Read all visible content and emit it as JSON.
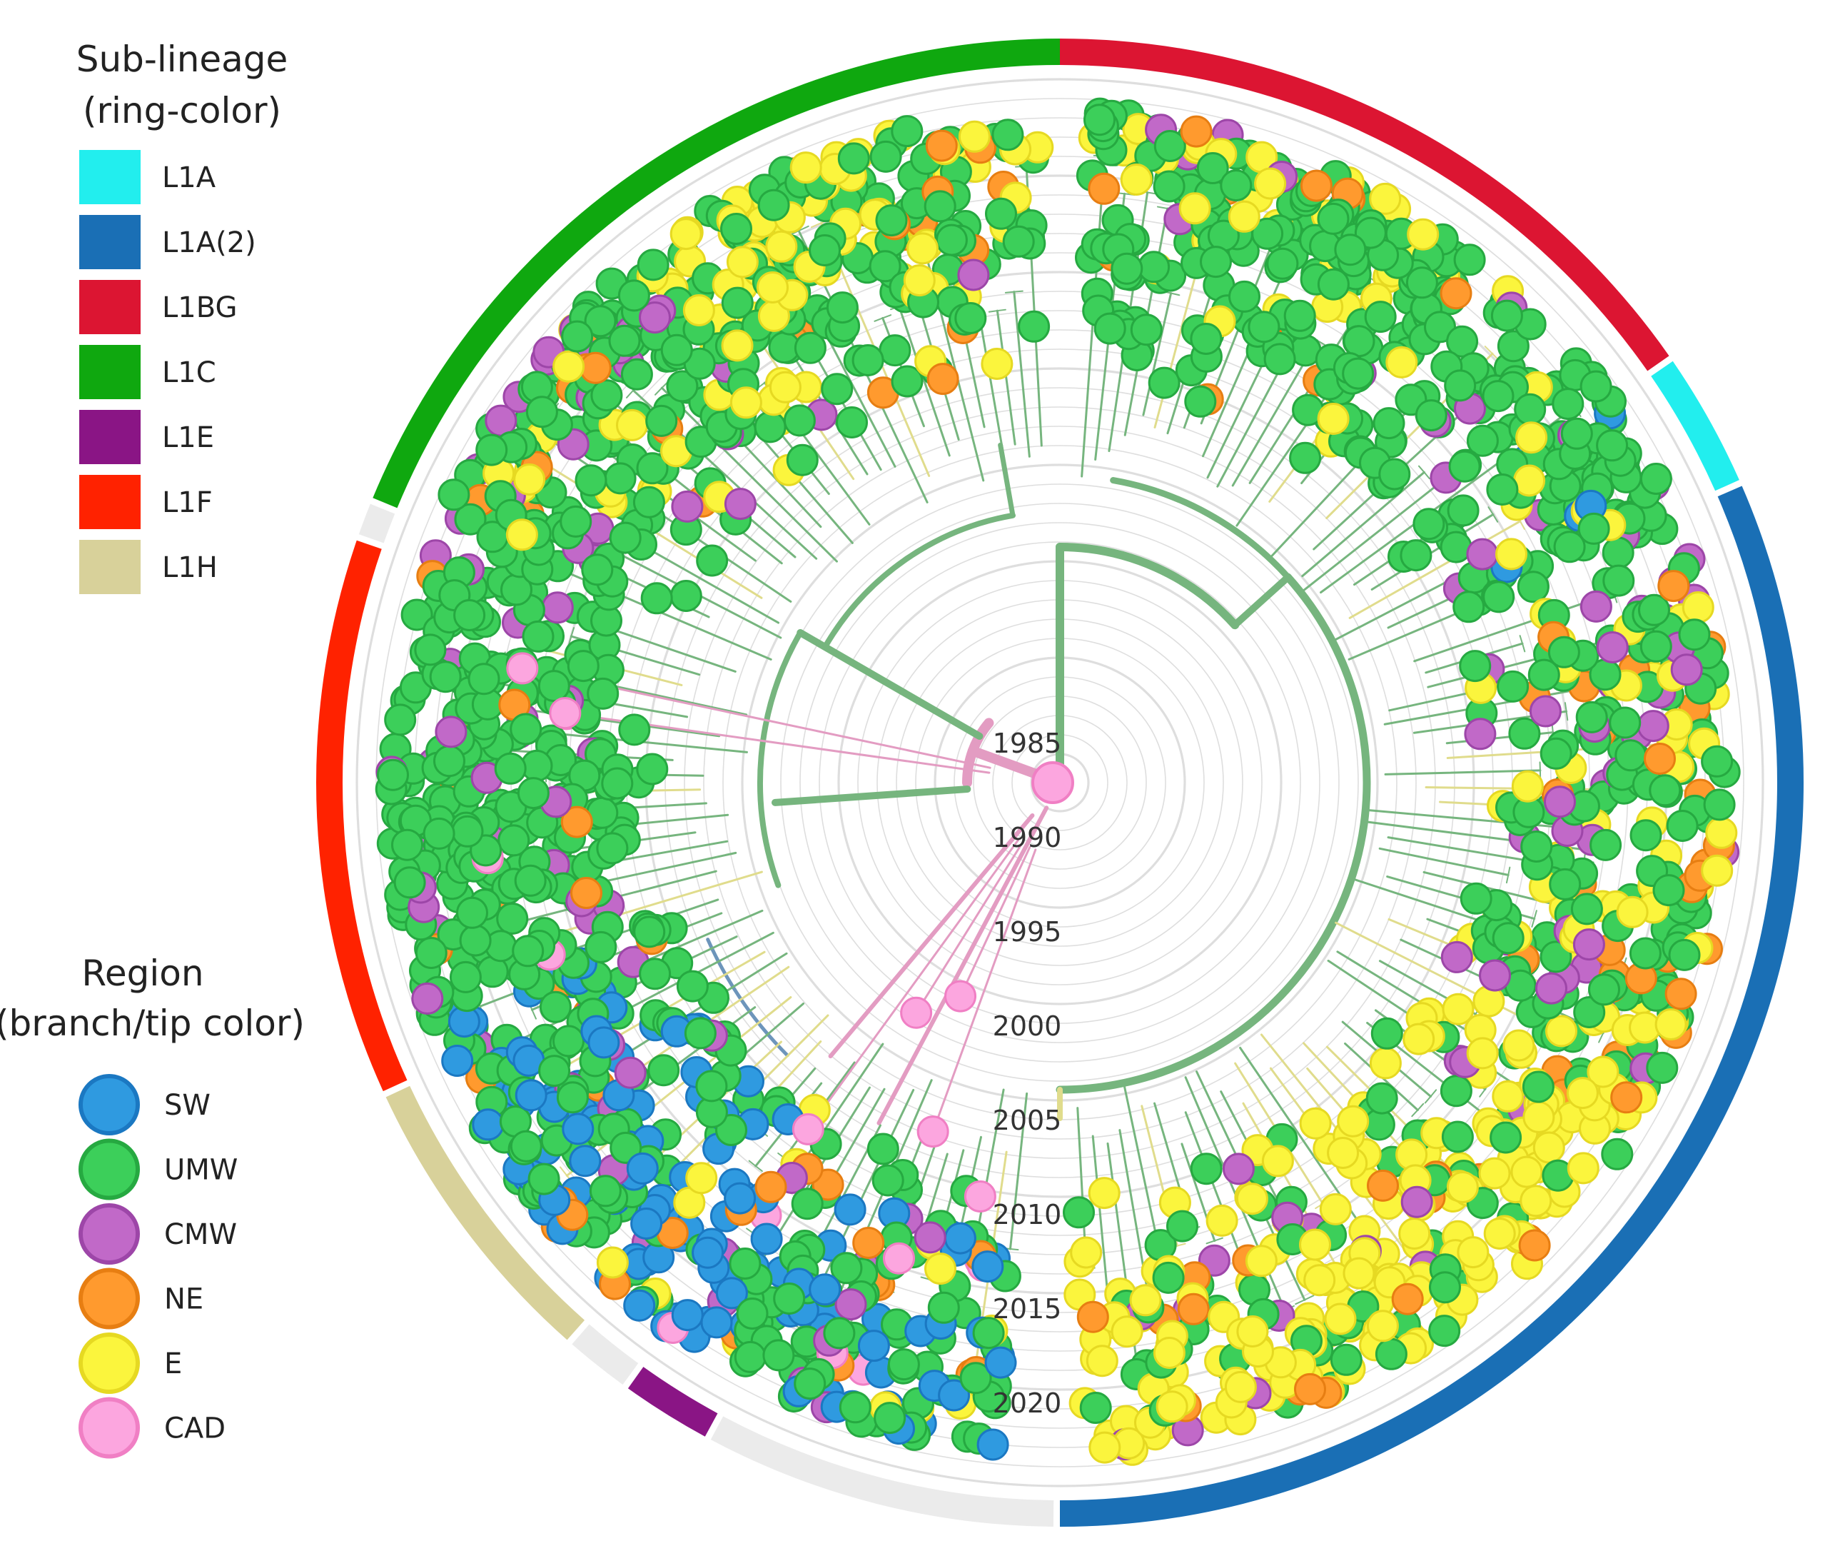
{
  "sublineage_legend": {
    "title": "Sub-lineage",
    "subtitle": "(ring-color)",
    "items": [
      {
        "label": "L1A",
        "color": "#22eeee"
      },
      {
        "label": "L1A(2)",
        "color": "#1a6fb5"
      },
      {
        "label": "L1BG",
        "color": "#dc1532"
      },
      {
        "label": "L1C",
        "color": "#0fa80f"
      },
      {
        "label": "L1E",
        "color": "#8a1585"
      },
      {
        "label": "L1F",
        "color": "#ff2200"
      },
      {
        "label": "L1H",
        "color": "#d8d19a"
      }
    ]
  },
  "region_legend": {
    "title": "Region",
    "subtitle": "(branch/tip color)",
    "items": [
      {
        "label": "SW",
        "color": "#2f9ae0"
      },
      {
        "label": "UMW",
        "color": "#3ccf5a"
      },
      {
        "label": "CMW",
        "color": "#c169c8"
      },
      {
        "label": "NE",
        "color": "#ff9a2e"
      },
      {
        "label": "E",
        "color": "#fbf53d"
      },
      {
        "label": "CAD",
        "color": "#fca6df"
      }
    ]
  },
  "time_axis": {
    "years": [
      "1985",
      "1990",
      "1995",
      "2000",
      "2005",
      "2010",
      "2015",
      "2020"
    ]
  },
  "lineage_ring": [
    {
      "lineage": "L1BG",
      "start_deg": 0,
      "end_deg": 55
    },
    {
      "lineage": "L1A",
      "start_deg": 55.5,
      "end_deg": 66
    },
    {
      "lineage": "L1A(2)",
      "start_deg": 66.5,
      "end_deg": 180
    },
    {
      "lineage": "none",
      "start_deg": 180.5,
      "end_deg": 208
    },
    {
      "lineage": "L1E",
      "start_deg": 208.5,
      "end_deg": 215.5
    },
    {
      "lineage": "none",
      "start_deg": 216,
      "end_deg": 221
    },
    {
      "lineage": "L1H",
      "start_deg": 221.5,
      "end_deg": 245
    },
    {
      "lineage": "L1F",
      "start_deg": 245.5,
      "end_deg": 289
    },
    {
      "lineage": "none",
      "start_deg": 289.5,
      "end_deg": 292
    },
    {
      "lineage": "L1C",
      "start_deg": 292.5,
      "end_deg": 360
    }
  ],
  "tree_sectors": [
    {
      "start_deg": 3,
      "end_deg": 40,
      "mix": {
        "UMW": 0.72,
        "E": 0.18,
        "NE": 0.05,
        "CMW": 0.05
      },
      "count": 240
    },
    {
      "start_deg": 42,
      "end_deg": 68,
      "mix": {
        "UMW": 0.82,
        "CMW": 0.06,
        "E": 0.08,
        "SW": 0.04
      },
      "count": 150
    },
    {
      "start_deg": 70,
      "end_deg": 118,
      "mix": {
        "UMW": 0.55,
        "E": 0.22,
        "CMW": 0.12,
        "NE": 0.11
      },
      "count": 260
    },
    {
      "start_deg": 118,
      "end_deg": 178,
      "mix": {
        "E": 0.68,
        "UMW": 0.22,
        "NE": 0.06,
        "CMW": 0.04
      },
      "count": 300
    },
    {
      "start_deg": 185,
      "end_deg": 226,
      "mix": {
        "UMW": 0.45,
        "SW": 0.35,
        "CMW": 0.06,
        "NE": 0.06,
        "CAD": 0.04,
        "E": 0.04
      },
      "count": 220
    },
    {
      "start_deg": 226,
      "end_deg": 250,
      "mix": {
        "SW": 0.45,
        "UMW": 0.42,
        "CMW": 0.07,
        "NE": 0.06
      },
      "count": 170
    },
    {
      "start_deg": 250,
      "end_deg": 290,
      "mix": {
        "UMW": 0.86,
        "CMW": 0.08,
        "NE": 0.04,
        "CAD": 0.02
      },
      "count": 260
    },
    {
      "start_deg": 292,
      "end_deg": 318,
      "mix": {
        "UMW": 0.72,
        "CMW": 0.12,
        "E": 0.1,
        "NE": 0.06
      },
      "count": 170
    },
    {
      "start_deg": 318,
      "end_deg": 358,
      "mix": {
        "UMW": 0.58,
        "E": 0.32,
        "NE": 0.07,
        "CMW": 0.03
      },
      "count": 240
    }
  ]
}
